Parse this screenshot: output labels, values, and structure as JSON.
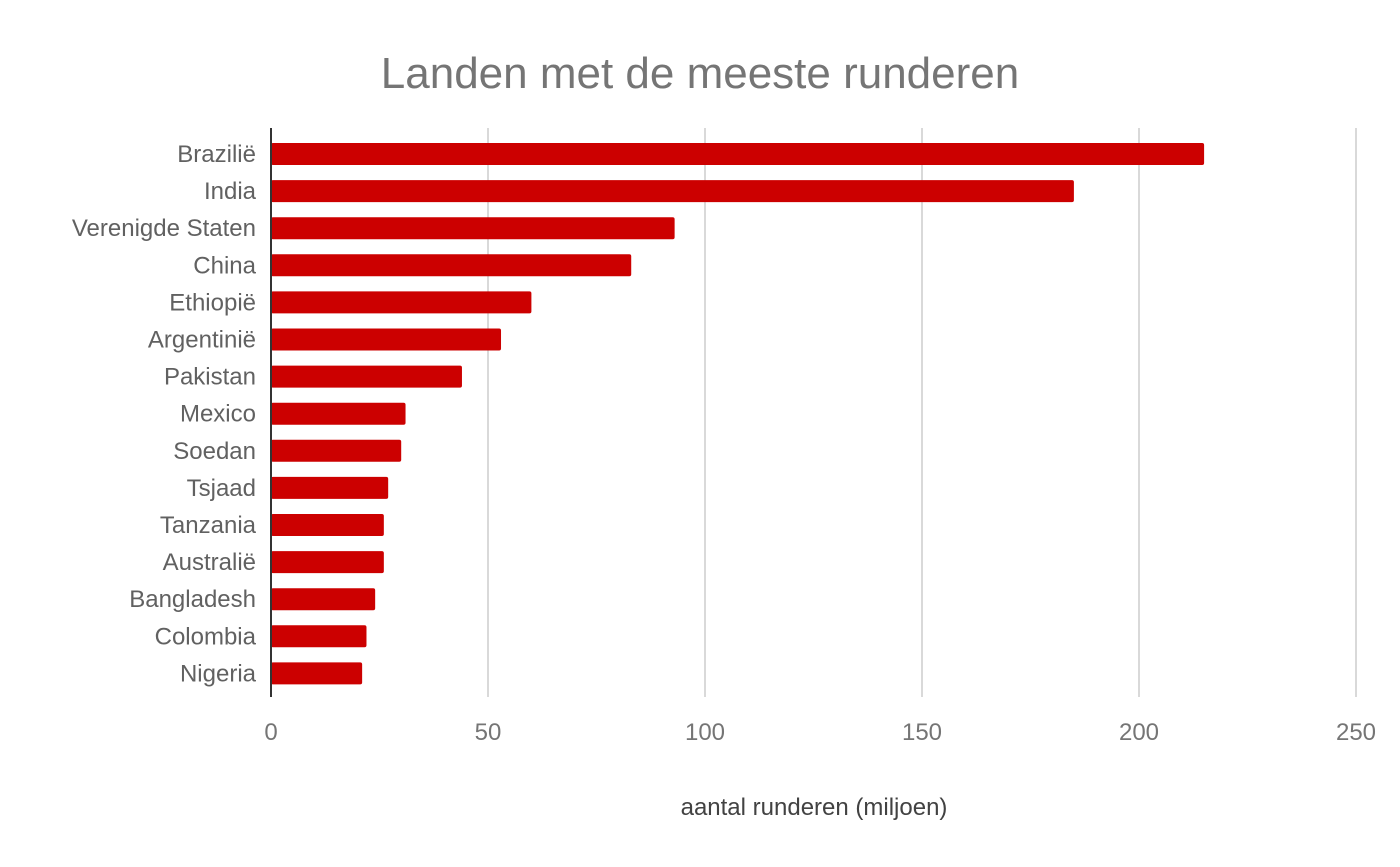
{
  "chart_data": {
    "type": "bar",
    "orientation": "horizontal",
    "title": "Landen met de meeste runderen",
    "xlabel": "aantal runderen (miljoen)",
    "ylabel": "",
    "categories": [
      "Brazilië",
      "India",
      "Verenigde Staten",
      "China",
      "Ethiopië",
      "Argentinië",
      "Pakistan",
      "Mexico",
      "Soedan",
      "Tsjaad",
      "Tanzania",
      "Australië",
      "Bangladesh",
      "Colombia",
      "Nigeria"
    ],
    "values": [
      215,
      185,
      93,
      83,
      60,
      53,
      44,
      31,
      30,
      27,
      26,
      26,
      24,
      22,
      21
    ],
    "xlim": [
      0,
      250
    ],
    "ticks": [
      "0",
      "50",
      "100",
      "150",
      "200",
      "250"
    ],
    "grid": true,
    "legend": "none",
    "bar_color": "#cc0000"
  }
}
